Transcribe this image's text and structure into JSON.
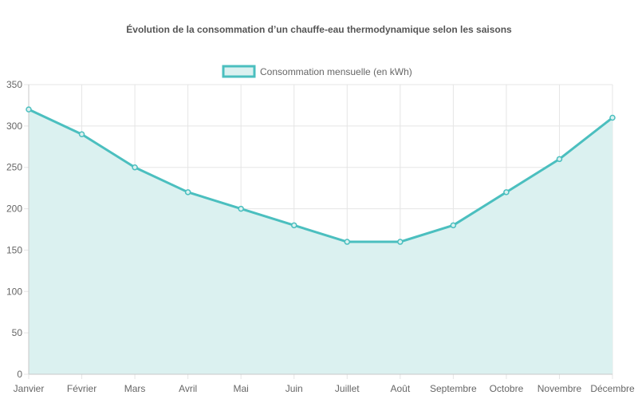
{
  "chart_data": {
    "type": "area",
    "title": "Évolution de la consommation d’un chauffe-eau thermodynamique selon les saisons",
    "categories": [
      "Janvier",
      "Février",
      "Mars",
      "Avril",
      "Mai",
      "Juin",
      "Juillet",
      "Août",
      "Septembre",
      "Octobre",
      "Novembre",
      "Décembre"
    ],
    "series": [
      {
        "name": "Consommation mensuelle (en kWh)",
        "values": [
          320,
          290,
          250,
          220,
          200,
          180,
          160,
          160,
          180,
          220,
          260,
          310
        ]
      }
    ],
    "ylim": [
      0,
      350
    ],
    "yticks": [
      0,
      50,
      100,
      150,
      200,
      250,
      300,
      350
    ],
    "xlabel": "",
    "ylabel": "",
    "grid": true,
    "legend_position": "top",
    "colors": {
      "line": "#4bbfbf",
      "fill": "#dbf1f0",
      "grid": "#e5e5e5",
      "text": "#666666",
      "title": "#555555"
    }
  }
}
